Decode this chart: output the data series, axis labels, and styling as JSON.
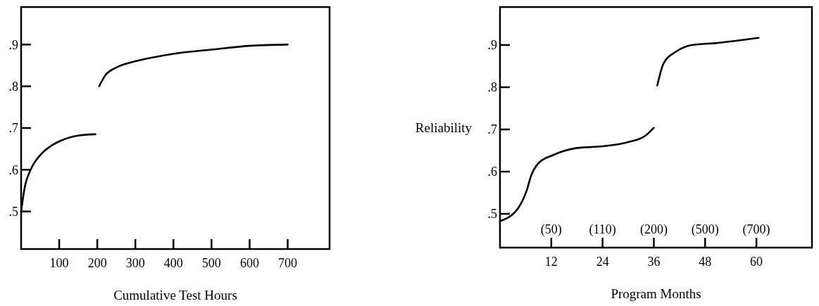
{
  "chart_data": [
    {
      "type": "line",
      "xlabel": "Cumulative Test Hours",
      "xlim": [
        0,
        810
      ],
      "xticks": [
        100,
        200,
        300,
        400,
        500,
        600,
        700
      ],
      "ylim": [
        0.41,
        0.99
      ],
      "yticks": [
        {
          "value": 0.5,
          "label": ".5"
        },
        {
          "value": 0.6,
          "label": ".6"
        },
        {
          "value": 0.7,
          "label": ".7"
        },
        {
          "value": 0.8,
          "label": ".8"
        },
        {
          "value": 0.9,
          "label": ".9"
        }
      ],
      "grid": false,
      "marker": "none",
      "line_style": "solid",
      "series": [
        {
          "color": "#000000",
          "x": [
            0,
            10,
            25,
            50,
            75,
            100,
            150,
            195
          ],
          "values": [
            0.5,
            0.56,
            0.6,
            0.635,
            0.655,
            0.668,
            0.682,
            0.685
          ]
        },
        {
          "color": "#000000",
          "x": [
            205,
            220,
            250,
            300,
            350,
            400,
            500,
            600,
            700
          ],
          "values": [
            0.8,
            0.825,
            0.845,
            0.86,
            0.87,
            0.878,
            0.888,
            0.897,
            0.9
          ]
        }
      ]
    },
    {
      "type": "line",
      "xlabel": "Program Months",
      "ylabel": "Reliability",
      "xlim": [
        0,
        73
      ],
      "xticks": [
        12,
        24,
        36,
        48,
        60
      ],
      "annotations": [
        "(50)",
        "(110)",
        "(200)",
        "(500)",
        "(700)"
      ],
      "ylim": [
        0.42,
        0.99
      ],
      "yticks": [
        {
          "value": 0.5,
          "label": ".5"
        },
        {
          "value": 0.6,
          "label": ".6"
        },
        {
          "value": 0.7,
          "label": ".7"
        },
        {
          "value": 0.8,
          "label": ".8"
        },
        {
          "value": 0.9,
          "label": ".9"
        }
      ],
      "grid": false,
      "marker": "none",
      "line_style": "solid",
      "series": [
        {
          "color": "#000000",
          "x": [
            0,
            4.2,
            6.3,
            7.2,
            9,
            12.6,
            18,
            24,
            30,
            34,
            36
          ],
          "values": [
            0.483,
            0.513,
            0.557,
            0.588,
            0.62,
            0.64,
            0.656,
            0.66,
            0.67,
            0.685,
            0.704
          ]
        },
        {
          "color": "#000000",
          "x": [
            36.8,
            38.3,
            41.3,
            44.9,
            50.9,
            60.5
          ],
          "values": [
            0.804,
            0.857,
            0.885,
            0.9,
            0.905,
            0.917
          ]
        }
      ]
    }
  ]
}
